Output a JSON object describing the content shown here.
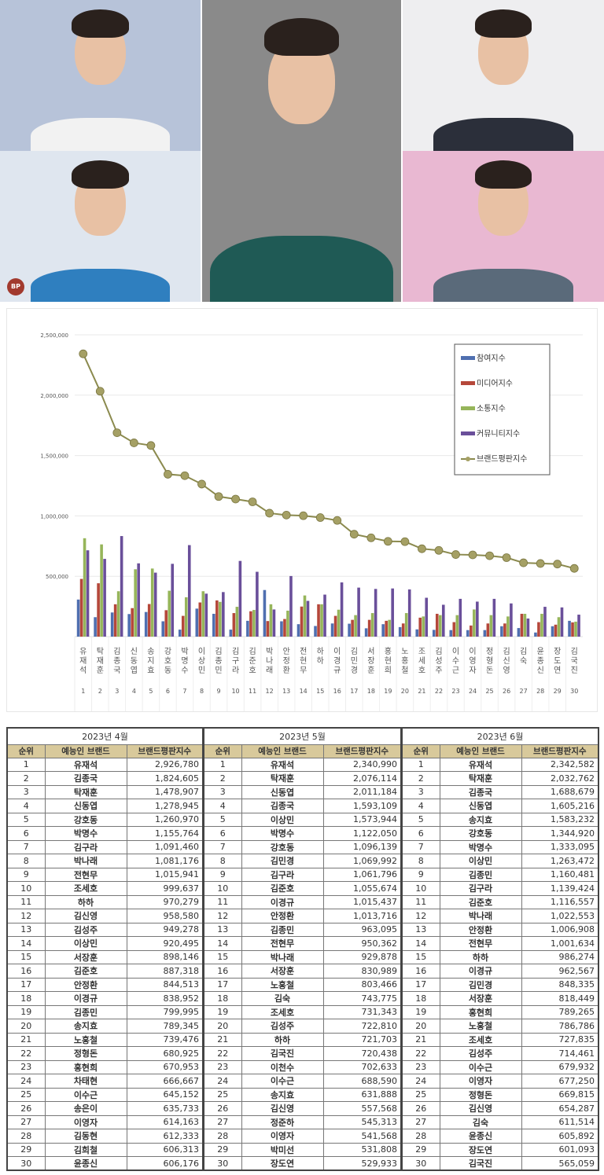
{
  "photos": [
    {
      "name": "photo-top-left",
      "bg": "#b7c3d9",
      "shirt": "#f2f2f2"
    },
    {
      "name": "photo-bottom-left",
      "bg": "#dfe6ef",
      "shirt": "#2f7fbf"
    },
    {
      "name": "photo-center",
      "bg": "#8a8a8a",
      "shirt": "#1f5a55"
    },
    {
      "name": "photo-top-right",
      "bg": "#eeeef0",
      "shirt": "#2b2f3a"
    },
    {
      "name": "photo-bottom-right",
      "bg": "#e9b8d2",
      "shirt": "#5a6a7a"
    }
  ],
  "watermark": "BP",
  "chart_data": {
    "type": "bar+line",
    "ylim": [
      0,
      2500000
    ],
    "yticks": [
      "2,500,000",
      "2,000,000",
      "1,500,000",
      "1,000,000",
      "500,000"
    ],
    "ytick_values": [
      2500000,
      2000000,
      1500000,
      1000000,
      500000
    ],
    "grid": true,
    "legend_placement": "top-right",
    "categories": [
      "유재석",
      "탁재훈",
      "김종국",
      "신동엽",
      "송지효",
      "강호동",
      "박명수",
      "이상민",
      "김종민",
      "김구라",
      "김준호",
      "박나래",
      "안정환",
      "전현무",
      "하하",
      "이경규",
      "김민경",
      "서장훈",
      "홍현희",
      "노홍철",
      "조세호",
      "김성주",
      "이수근",
      "이영자",
      "정형돈",
      "김신영",
      "김숙",
      "윤종신",
      "장도연",
      "김국진"
    ],
    "ranks": [
      "1",
      "2",
      "3",
      "4",
      "5",
      "6",
      "7",
      "8",
      "9",
      "10",
      "11",
      "12",
      "13",
      "14",
      "15",
      "16",
      "17",
      "18",
      "19",
      "20",
      "21",
      "22",
      "23",
      "24",
      "25",
      "26",
      "27",
      "28",
      "29",
      "30"
    ],
    "series": [
      {
        "name": "참여지수",
        "kind": "bar",
        "color": "#4f6fb0",
        "values": [
          307000,
          161000,
          200000,
          187000,
          204000,
          127000,
          58000,
          232000,
          189000,
          58000,
          131000,
          386000,
          127000,
          103000,
          88000,
          109000,
          107000,
          69000,
          103000,
          79000,
          60000,
          56000,
          54000,
          54000,
          54000,
          86000,
          71000,
          34000,
          86000,
          131000
        ]
      },
      {
        "name": "미디어지수",
        "kind": "bar",
        "color": "#b5473a",
        "values": [
          478000,
          442000,
          268000,
          236000,
          270000,
          219000,
          172000,
          283000,
          300000,
          195000,
          210000,
          129000,
          146000,
          249000,
          268000,
          172000,
          139000,
          139000,
          131000,
          109000,
          157000,
          189000,
          120000,
          92000,
          109000,
          109000,
          189000,
          120000,
          99000,
          118000
        ]
      },
      {
        "name": "소통지수",
        "kind": "bar",
        "color": "#96b55a",
        "values": [
          815000,
          764000,
          376000,
          558000,
          564000,
          380000,
          326000,
          376000,
          288000,
          247000,
          221000,
          268000,
          215000,
          341000,
          268000,
          223000,
          178000,
          195000,
          139000,
          195000,
          167000,
          178000,
          178000,
          225000,
          178000,
          167000,
          189000,
          189000,
          161000,
          124000
        ]
      },
      {
        "name": "커뮤니티지수",
        "kind": "bar",
        "color": "#6a4f9a",
        "values": [
          715000,
          644000,
          833000,
          607000,
          530000,
          603000,
          758000,
          356000,
          369000,
          627000,
          537000,
          225000,
          502000,
          296000,
          348000,
          449000,
          406000,
          395000,
          399000,
          391000,
          322000,
          264000,
          313000,
          290000,
          313000,
          275000,
          150000,
          247000,
          242000,
          182000
        ]
      },
      {
        "name": "브랜드평판지수",
        "kind": "line",
        "color": "#8b8a4e",
        "values": [
          2342582,
          2032762,
          1688679,
          1605216,
          1583232,
          1344920,
          1333095,
          1263472,
          1160481,
          1139424,
          1116557,
          1022553,
          1006908,
          1001634,
          986274,
          962567,
          848335,
          818449,
          789265,
          786786,
          727835,
          714461,
          679932,
          677250,
          669815,
          654287,
          611514,
          605892,
          601093,
          565059
        ]
      }
    ]
  },
  "tables": [
    {
      "month": "2023년 4월",
      "headers": [
        "순위",
        "예능인 브랜드",
        "브랜드평판지수"
      ],
      "rows": [
        [
          "1",
          "유재석",
          "2,926,780"
        ],
        [
          "2",
          "김종국",
          "1,824,605"
        ],
        [
          "3",
          "탁재훈",
          "1,478,907"
        ],
        [
          "4",
          "신동엽",
          "1,278,945"
        ],
        [
          "5",
          "강호동",
          "1,260,970"
        ],
        [
          "6",
          "박명수",
          "1,155,764"
        ],
        [
          "7",
          "김구라",
          "1,091,460"
        ],
        [
          "8",
          "박나래",
          "1,081,176"
        ],
        [
          "9",
          "전현무",
          "1,015,941"
        ],
        [
          "10",
          "조세호",
          "999,637"
        ],
        [
          "11",
          "하하",
          "970,279"
        ],
        [
          "12",
          "김신영",
          "958,580"
        ],
        [
          "13",
          "김성주",
          "949,278"
        ],
        [
          "14",
          "이상민",
          "920,495"
        ],
        [
          "15",
          "서장훈",
          "898,146"
        ],
        [
          "16",
          "김준호",
          "887,318"
        ],
        [
          "17",
          "안정환",
          "844,513"
        ],
        [
          "18",
          "이경규",
          "838,952"
        ],
        [
          "19",
          "김종민",
          "799,995"
        ],
        [
          "20",
          "송지효",
          "789,345"
        ],
        [
          "21",
          "노홍철",
          "739,476"
        ],
        [
          "22",
          "정형돈",
          "680,925"
        ],
        [
          "23",
          "홍현희",
          "670,953"
        ],
        [
          "24",
          "차태현",
          "666,667"
        ],
        [
          "25",
          "이수근",
          "645,152"
        ],
        [
          "26",
          "송은이",
          "635,733"
        ],
        [
          "27",
          "이영자",
          "614,163"
        ],
        [
          "28",
          "김동현",
          "612,333"
        ],
        [
          "29",
          "김희철",
          "606,313"
        ],
        [
          "30",
          "윤종신",
          "606,176"
        ]
      ]
    },
    {
      "month": "2023년 5월",
      "headers": [
        "순위",
        "예능인 브랜드",
        "브랜드평판지수"
      ],
      "rows": [
        [
          "1",
          "유재석",
          "2,340,990"
        ],
        [
          "2",
          "탁재훈",
          "2,076,114"
        ],
        [
          "3",
          "신동엽",
          "2,011,184"
        ],
        [
          "4",
          "김종국",
          "1,593,109"
        ],
        [
          "5",
          "이상민",
          "1,573,944"
        ],
        [
          "6",
          "박명수",
          "1,122,050"
        ],
        [
          "7",
          "강호동",
          "1,096,139"
        ],
        [
          "8",
          "김민경",
          "1,069,992"
        ],
        [
          "9",
          "김구라",
          "1,061,796"
        ],
        [
          "10",
          "김준호",
          "1,055,674"
        ],
        [
          "11",
          "이경규",
          "1,015,437"
        ],
        [
          "12",
          "안정환",
          "1,013,716"
        ],
        [
          "13",
          "김종민",
          "963,095"
        ],
        [
          "14",
          "전현무",
          "950,362"
        ],
        [
          "15",
          "박나래",
          "929,878"
        ],
        [
          "16",
          "서장훈",
          "830,989"
        ],
        [
          "17",
          "노홍철",
          "803,466"
        ],
        [
          "18",
          "김숙",
          "743,775"
        ],
        [
          "19",
          "조세호",
          "731,343"
        ],
        [
          "20",
          "김성주",
          "722,810"
        ],
        [
          "21",
          "하하",
          "721,703"
        ],
        [
          "22",
          "김국진",
          "720,438"
        ],
        [
          "23",
          "이천수",
          "702,633"
        ],
        [
          "24",
          "이수근",
          "688,590"
        ],
        [
          "25",
          "송지효",
          "631,888"
        ],
        [
          "26",
          "김신영",
          "557,568"
        ],
        [
          "27",
          "정준하",
          "545,313"
        ],
        [
          "28",
          "이영자",
          "541,568"
        ],
        [
          "29",
          "박미선",
          "531,808"
        ],
        [
          "30",
          "장도연",
          "529,933"
        ]
      ]
    },
    {
      "month": "2023년 6월",
      "headers": [
        "순위",
        "예능인 브랜드",
        "브랜드평판지수"
      ],
      "rows": [
        [
          "1",
          "유재석",
          "2,342,582"
        ],
        [
          "2",
          "탁재훈",
          "2,032,762"
        ],
        [
          "3",
          "김종국",
          "1,688,679"
        ],
        [
          "4",
          "신동엽",
          "1,605,216"
        ],
        [
          "5",
          "송지효",
          "1,583,232"
        ],
        [
          "6",
          "강호동",
          "1,344,920"
        ],
        [
          "7",
          "박명수",
          "1,333,095"
        ],
        [
          "8",
          "이상민",
          "1,263,472"
        ],
        [
          "9",
          "김종민",
          "1,160,481"
        ],
        [
          "10",
          "김구라",
          "1,139,424"
        ],
        [
          "11",
          "김준호",
          "1,116,557"
        ],
        [
          "12",
          "박나래",
          "1,022,553"
        ],
        [
          "13",
          "안정환",
          "1,006,908"
        ],
        [
          "14",
          "전현무",
          "1,001,634"
        ],
        [
          "15",
          "하하",
          "986,274"
        ],
        [
          "16",
          "이경규",
          "962,567"
        ],
        [
          "17",
          "김민경",
          "848,335"
        ],
        [
          "18",
          "서장훈",
          "818,449"
        ],
        [
          "19",
          "홍현희",
          "789,265"
        ],
        [
          "20",
          "노홍철",
          "786,786"
        ],
        [
          "21",
          "조세호",
          "727,835"
        ],
        [
          "22",
          "김성주",
          "714,461"
        ],
        [
          "23",
          "이수근",
          "679,932"
        ],
        [
          "24",
          "이영자",
          "677,250"
        ],
        [
          "25",
          "정형돈",
          "669,815"
        ],
        [
          "26",
          "김신영",
          "654,287"
        ],
        [
          "27",
          "김숙",
          "611,514"
        ],
        [
          "28",
          "윤종신",
          "605,892"
        ],
        [
          "29",
          "장도연",
          "601,093"
        ],
        [
          "30",
          "김국진",
          "565,059"
        ]
      ]
    }
  ],
  "colors": {
    "table_header_bg": "#d8c99b",
    "line": "#8b8a4e",
    "marker": "#a5a065"
  }
}
